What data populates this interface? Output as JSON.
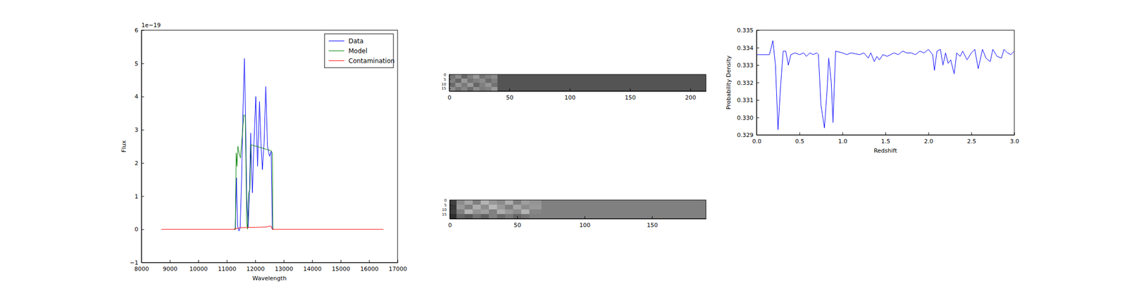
{
  "chart_data": [
    {
      "type": "line",
      "x_label": "Wavelength",
      "y_label": "Flux",
      "annotations": [
        "1e−19"
      ],
      "xlim": [
        8000,
        17000
      ],
      "ylim": [
        -1,
        6
      ],
      "xticks": [
        8000,
        9000,
        10000,
        11000,
        12000,
        13000,
        14000,
        15000,
        16000,
        17000
      ],
      "yticks": [
        {
          "value": -1,
          "label": "−1"
        },
        0,
        1,
        2,
        3,
        4,
        5,
        6
      ],
      "legend": "upper right",
      "series": [
        {
          "name": "Data",
          "color": "#0000ff",
          "x": [
            11250,
            11300,
            11340,
            11380,
            11430,
            11470,
            11520,
            11570,
            11620,
            11660,
            11700,
            11750,
            11800,
            11840,
            11870,
            11900,
            11950,
            12020,
            12080,
            12150,
            12200,
            12250,
            12310,
            12370,
            12430,
            12500,
            12560,
            12600,
            12650
          ],
          "values": [
            0,
            0,
            1.55,
            0.1,
            -0.05,
            0.05,
            1.5,
            3.6,
            5.15,
            3.3,
            1.0,
            0.05,
            1.2,
            2.9,
            1.8,
            1.1,
            2.5,
            4.0,
            1.9,
            3.85,
            2.6,
            1.8,
            2.6,
            4.3,
            2.5,
            2.2,
            2.35,
            0,
            0
          ]
        },
        {
          "name": "Model",
          "color": "#008000",
          "x": [
            11250,
            11300,
            11330,
            11360,
            11390,
            11430,
            11480,
            11540,
            11600,
            11650,
            11700,
            11730,
            11770,
            11810,
            11850,
            11950,
            12050,
            12150,
            12250,
            12350,
            12450,
            12560,
            12600,
            12620,
            12650
          ],
          "values": [
            0,
            0,
            2.3,
            1.9,
            2.5,
            2.3,
            2.15,
            2.8,
            3.45,
            3.4,
            0.2,
            0,
            1.1,
            1.2,
            2.55,
            2.52,
            2.5,
            2.47,
            2.45,
            2.42,
            2.4,
            2.37,
            2.3,
            0,
            0
          ]
        },
        {
          "name": "Contamination",
          "color": "#ff0000",
          "x": [
            8700,
            11250,
            11300,
            11500,
            12000,
            12400,
            12500,
            12560,
            12600,
            16500
          ],
          "values": [
            0,
            0,
            0.02,
            0.05,
            0.06,
            0.07,
            0.1,
            0.09,
            0,
            0
          ]
        }
      ]
    },
    {
      "type": "heatmap",
      "xlim": [
        0,
        213
      ],
      "ylim": [
        0,
        18
      ],
      "xticks": [
        0,
        50,
        100,
        150,
        200
      ],
      "yticks": [
        0,
        5,
        10,
        15
      ],
      "clim": [
        0,
        1
      ],
      "x_edges": [
        0,
        5,
        10,
        15,
        20,
        25,
        30,
        35,
        40,
        213
      ],
      "y_edges": [
        0,
        4.5,
        9,
        13.5,
        18
      ],
      "cells": [
        [
          0.45,
          0.55,
          0.4,
          0.5,
          0.6,
          0.45,
          0.5,
          0.55,
          0.33
        ],
        [
          0.5,
          0.4,
          0.6,
          0.45,
          0.5,
          0.55,
          0.42,
          0.5,
          0.33
        ],
        [
          0.42,
          0.58,
          0.48,
          0.6,
          0.4,
          0.5,
          0.58,
          0.45,
          0.33
        ],
        [
          0.55,
          0.45,
          0.52,
          0.42,
          0.55,
          0.48,
          0.5,
          0.6,
          0.33
        ]
      ]
    },
    {
      "type": "heatmap",
      "xlim": [
        0,
        190
      ],
      "ylim": [
        0,
        20
      ],
      "xticks": [
        0,
        50,
        100,
        150
      ],
      "yticks": [
        0,
        5,
        10,
        15
      ],
      "clim": [
        0,
        1
      ],
      "x_edges": [
        0,
        5,
        11,
        17,
        23,
        29,
        35,
        41,
        47,
        53,
        59,
        68,
        190
      ],
      "y_edges": [
        0,
        5,
        10,
        15,
        20
      ],
      "cells": [
        [
          0.25,
          0.55,
          0.65,
          0.5,
          0.7,
          0.6,
          0.55,
          0.68,
          0.5,
          0.62,
          0.58,
          0.5
        ],
        [
          0.22,
          0.6,
          0.5,
          0.68,
          0.55,
          0.72,
          0.6,
          0.5,
          0.65,
          0.55,
          0.6,
          0.5
        ],
        [
          0.25,
          0.5,
          0.7,
          0.58,
          0.62,
          0.5,
          0.68,
          0.6,
          0.55,
          0.7,
          0.52,
          0.5
        ],
        [
          0.18,
          0.4,
          0.35,
          0.45,
          0.38,
          0.5,
          0.42,
          0.48,
          0.4,
          0.45,
          0.5,
          0.5
        ]
      ]
    },
    {
      "type": "line",
      "x_label": "Redshift",
      "y_label": "Probability Density",
      "xlim": [
        0,
        3
      ],
      "ylim": [
        0.329,
        0.335
      ],
      "xticks": [
        {
          "value": 0,
          "label": "0.0"
        },
        {
          "value": 0.5,
          "label": "0.5"
        },
        {
          "value": 1,
          "label": "1.0"
        },
        {
          "value": 1.5,
          "label": "1.5"
        },
        {
          "value": 2,
          "label": "2.0"
        },
        {
          "value": 2.5,
          "label": "2.5"
        },
        {
          "value": 3,
          "label": "3.0"
        }
      ],
      "yticks": [
        {
          "value": 0.329,
          "label": "0.329"
        },
        {
          "value": 0.33,
          "label": "0.330"
        },
        {
          "value": 0.331,
          "label": "0.331"
        },
        {
          "value": 0.332,
          "label": "0.332"
        },
        {
          "value": 0.333,
          "label": "0.333"
        },
        {
          "value": 0.334,
          "label": "0.334"
        },
        {
          "value": 0.335,
          "label": "0.335"
        }
      ],
      "x": [
        0,
        0.15,
        0.19,
        0.22,
        0.25,
        0.28,
        0.31,
        0.34,
        0.37,
        0.4,
        0.45,
        0.5,
        0.55,
        0.58,
        0.62,
        0.66,
        0.7,
        0.72,
        0.75,
        0.79,
        0.82,
        0.84,
        0.87,
        0.89,
        0.92,
        1.0,
        1.05,
        1.1,
        1.2,
        1.25,
        1.3,
        1.33,
        1.37,
        1.4,
        1.43,
        1.47,
        1.52,
        1.6,
        1.65,
        1.7,
        1.75,
        1.8,
        1.85,
        1.9,
        1.95,
        2.0,
        2.05,
        2.07,
        2.1,
        2.14,
        2.17,
        2.2,
        2.23,
        2.26,
        2.3,
        2.33,
        2.37,
        2.4,
        2.45,
        2.5,
        2.54,
        2.58,
        2.63,
        2.67,
        2.72,
        2.75,
        2.8,
        2.85,
        2.88,
        2.92,
        2.96,
        3.0
      ],
      "series": [
        {
          "color": "#0000ff",
          "values": [
            0.3336,
            0.3336,
            0.3344,
            0.333,
            0.3293,
            0.3318,
            0.3338,
            0.3338,
            0.333,
            0.3336,
            0.3337,
            0.3336,
            0.3337,
            0.3335,
            0.3337,
            0.3336,
            0.3337,
            0.3336,
            0.3307,
            0.3294,
            0.3315,
            0.3334,
            0.332,
            0.3297,
            0.3338,
            0.3337,
            0.3336,
            0.3337,
            0.3336,
            0.3337,
            0.3334,
            0.3337,
            0.3332,
            0.3335,
            0.3333,
            0.3336,
            0.3335,
            0.3337,
            0.3336,
            0.3338,
            0.3337,
            0.3337,
            0.3336,
            0.3338,
            0.3337,
            0.3339,
            0.3336,
            0.3327,
            0.3338,
            0.3339,
            0.333,
            0.3337,
            0.3331,
            0.3333,
            0.3325,
            0.3337,
            0.3335,
            0.3338,
            0.3333,
            0.3337,
            0.3339,
            0.3328,
            0.3339,
            0.3334,
            0.3332,
            0.3339,
            0.3335,
            0.3334,
            0.3339,
            0.3337,
            0.3336,
            0.3338
          ]
        }
      ]
    }
  ]
}
